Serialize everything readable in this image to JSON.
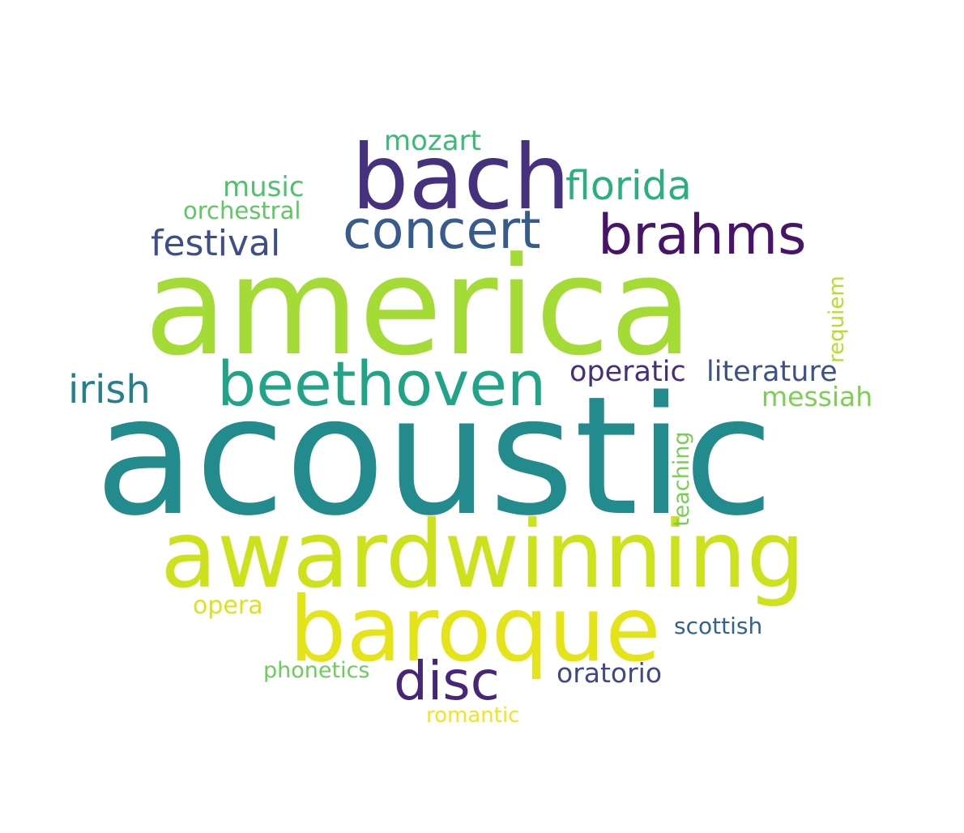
{
  "words": {
    "acoustic": {
      "text": "acoustic",
      "color": "#238a8d"
    },
    "america": {
      "text": "america",
      "color": "#a5db36"
    },
    "awardwinning": {
      "text": "awardwinning",
      "color": "#cde11d"
    },
    "baroque": {
      "text": "baroque",
      "color": "#e5e419"
    },
    "bach": {
      "text": "bach",
      "color": "#46317e"
    },
    "beethoven": {
      "text": "beethoven",
      "color": "#20a386"
    },
    "concert": {
      "text": "concert",
      "color": "#375b8d"
    },
    "brahms": {
      "text": "brahms",
      "color": "#481467"
    },
    "disc": {
      "text": "disc",
      "color": "#482677"
    },
    "florida": {
      "text": "florida",
      "color": "#2ab07f"
    },
    "festival": {
      "text": "festival",
      "color": "#3d4e8a"
    },
    "irish": {
      "text": "irish",
      "color": "#277f8e"
    },
    "operatic": {
      "text": "operatic",
      "color": "#472d7b"
    },
    "literature": {
      "text": "literature",
      "color": "#3b528b"
    },
    "messiah": {
      "text": "messiah",
      "color": "#7ad151"
    },
    "mozart": {
      "text": "mozart",
      "color": "#3bbb75"
    },
    "music": {
      "text": "music",
      "color": "#4ec36b"
    },
    "orchestral": {
      "text": "orchestral",
      "color": "#5ec962"
    },
    "requiem": {
      "text": "requiem",
      "color": "#b5de2b"
    },
    "teaching": {
      "text": "teaching",
      "color": "#75d054"
    },
    "opera": {
      "text": "opera",
      "color": "#dde318"
    },
    "scottish": {
      "text": "scottish",
      "color": "#33638d"
    },
    "oratorio": {
      "text": "oratorio",
      "color": "#3e4989"
    },
    "phonetics": {
      "text": "phonetics",
      "color": "#6ccd5a"
    },
    "romantic": {
      "text": "romantic",
      "color": "#f1e51d"
    }
  }
}
